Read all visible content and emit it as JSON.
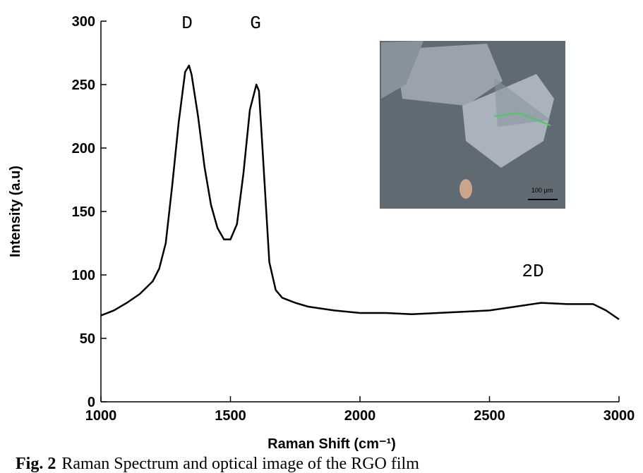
{
  "chart_data": {
    "type": "line",
    "x_label": "Raman Shift (cm⁻¹)",
    "y_label": "Intensity (a.u)",
    "caption_label": "Fig. 2",
    "caption_text": "Raman Spectrum and optical image of the RGO film",
    "annotations": [
      "D",
      "G",
      "2D"
    ],
    "inset_scale_label": "100 μm",
    "x": [
      1000,
      1050,
      1100,
      1150,
      1200,
      1225,
      1250,
      1275,
      1300,
      1325,
      1340,
      1350,
      1375,
      1400,
      1425,
      1450,
      1475,
      1500,
      1525,
      1550,
      1575,
      1600,
      1610,
      1625,
      1650,
      1675,
      1700,
      1750,
      1800,
      1900,
      2000,
      2100,
      2200,
      2300,
      2400,
      2500,
      2600,
      2700,
      2800,
      2900,
      2950,
      3000
    ],
    "series": [
      {
        "name": "Raman",
        "color": "#000000",
        "values": [
          68,
          72,
          78,
          85,
          95,
          105,
          125,
          170,
          220,
          260,
          265,
          258,
          225,
          185,
          155,
          137,
          128,
          128,
          140,
          180,
          230,
          250,
          245,
          195,
          110,
          88,
          82,
          78,
          75,
          72,
          70,
          70,
          69,
          70,
          71,
          72,
          75,
          78,
          77,
          77,
          72,
          65
        ]
      }
    ],
    "xlim": [
      1000,
      3000
    ],
    "xticks": [
      1000,
      1500,
      2000,
      2500,
      3000
    ],
    "ylim": [
      0,
      300
    ],
    "yticks": [
      0,
      50,
      100,
      150,
      200,
      250,
      300
    ],
    "grid": false
  }
}
